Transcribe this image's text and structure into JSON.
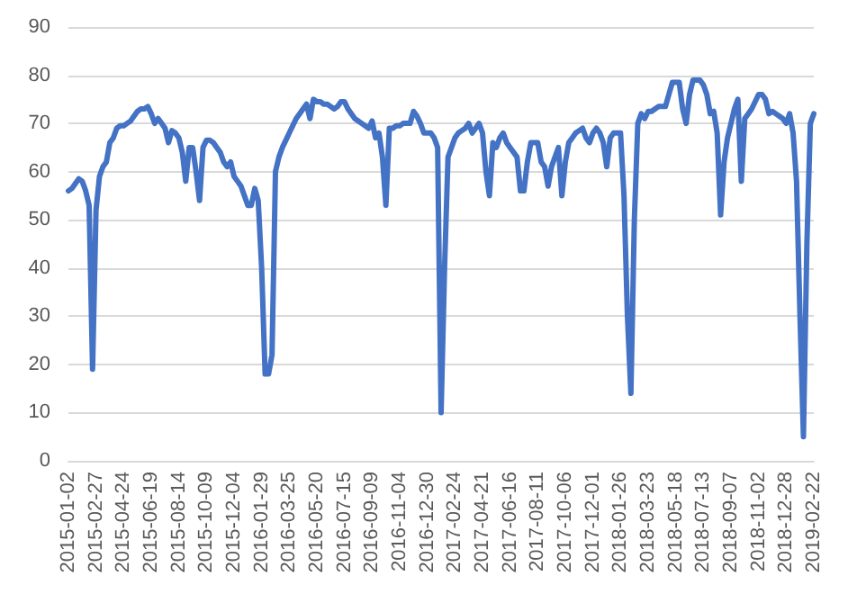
{
  "chart_data": {
    "type": "line",
    "categories": [
      "2015-01-02",
      null,
      null,
      null,
      null,
      null,
      null,
      null,
      "2015-02-27",
      null,
      null,
      null,
      null,
      null,
      null,
      null,
      "2015-04-24",
      null,
      null,
      null,
      null,
      null,
      null,
      null,
      "2015-06-19",
      null,
      null,
      null,
      null,
      null,
      null,
      null,
      "2015-08-14",
      null,
      null,
      null,
      null,
      null,
      null,
      null,
      "2015-10-09",
      null,
      null,
      null,
      null,
      null,
      null,
      null,
      "2015-12-04",
      null,
      null,
      null,
      null,
      null,
      null,
      null,
      "2016-01-29",
      null,
      null,
      null,
      null,
      null,
      null,
      null,
      "2016-03-25",
      null,
      null,
      null,
      null,
      null,
      null,
      null,
      "2016-05-20",
      null,
      null,
      null,
      null,
      null,
      null,
      null,
      "2016-07-15",
      null,
      null,
      null,
      null,
      null,
      null,
      null,
      "2016-09-09",
      null,
      null,
      null,
      null,
      null,
      null,
      null,
      "2016-11-04",
      null,
      null,
      null,
      null,
      null,
      null,
      null,
      "2016-12-30",
      null,
      null,
      null,
      null,
      null,
      null,
      null,
      "2017-02-24",
      null,
      null,
      null,
      null,
      null,
      null,
      null,
      "2017-04-21",
      null,
      null,
      null,
      null,
      null,
      null,
      null,
      "2017-06-16",
      null,
      null,
      null,
      null,
      null,
      null,
      null,
      "2017-08-11",
      null,
      null,
      null,
      null,
      null,
      null,
      null,
      "2017-10-06",
      null,
      null,
      null,
      null,
      null,
      null,
      null,
      "2017-12-01",
      null,
      null,
      null,
      null,
      null,
      null,
      null,
      "2018-01-26",
      null,
      null,
      null,
      null,
      null,
      null,
      null,
      "2018-03-23",
      null,
      null,
      null,
      null,
      null,
      null,
      null,
      "2018-05-18",
      null,
      null,
      null,
      null,
      null,
      null,
      null,
      "2018-07-13",
      null,
      null,
      null,
      null,
      null,
      null,
      null,
      "2018-09-07",
      null,
      null,
      null,
      null,
      null,
      null,
      null,
      "2018-11-02",
      null,
      null,
      null,
      null,
      null,
      null,
      null,
      "2018-12-28",
      null,
      null,
      null,
      null,
      null,
      null,
      null,
      "2019-02-22"
    ],
    "series": [
      {
        "color": "#4472c4",
        "values": [
          56,
          56.5,
          57.5,
          58.5,
          58,
          56,
          53,
          19,
          52,
          59,
          61,
          62,
          66,
          67,
          69,
          69.5,
          69.5,
          70,
          70.5,
          71.5,
          72.5,
          73,
          73,
          73.5,
          72,
          70,
          71,
          70,
          69,
          66,
          68.5,
          68,
          67,
          64,
          58,
          65,
          65,
          60,
          54,
          65,
          66.5,
          66.5,
          66,
          65,
          64,
          62,
          61,
          62,
          59,
          58,
          57,
          55,
          53,
          53,
          56.5,
          54,
          40,
          18,
          18,
          22,
          60,
          63,
          65,
          66.5,
          68,
          69.5,
          71,
          72,
          73,
          74,
          71,
          75,
          74.5,
          74.5,
          74,
          74,
          73.5,
          73,
          73.5,
          74.5,
          74.5,
          73,
          72,
          71,
          70.5,
          70,
          69.5,
          69,
          70.5,
          67,
          68,
          63,
          53,
          69,
          69,
          69.5,
          69.5,
          70,
          70,
          70,
          72.5,
          71.5,
          70,
          68,
          68,
          68,
          67,
          65,
          10,
          40,
          63,
          65,
          67,
          68,
          68.5,
          69,
          70,
          68,
          69,
          70,
          68,
          60,
          55,
          66,
          65,
          67,
          68,
          66,
          65,
          64,
          63,
          56,
          56,
          62,
          66,
          66,
          66,
          62,
          61,
          57,
          61,
          63,
          65,
          55,
          62,
          66,
          67,
          68,
          68.5,
          69,
          67,
          66,
          68,
          69,
          68,
          66,
          61,
          67,
          68,
          68,
          68,
          55,
          30,
          14,
          50,
          70,
          72,
          71,
          72.5,
          72.5,
          73,
          73.5,
          73.5,
          73.5,
          76,
          78.5,
          78.5,
          78.5,
          73,
          70,
          76,
          79,
          79,
          79,
          78,
          76,
          72,
          72.5,
          68,
          51,
          62,
          67,
          70,
          73,
          75,
          58,
          71,
          72,
          73,
          74.5,
          76,
          76,
          75,
          72,
          72.5,
          72,
          71.5,
          71,
          70,
          72,
          68,
          58,
          30,
          5,
          45,
          70,
          72
        ]
      }
    ],
    "ylim": [
      0,
      90
    ],
    "yticks": [
      0,
      10,
      20,
      30,
      40,
      50,
      60,
      70,
      80,
      90
    ],
    "grid": "y",
    "marker": "none",
    "line_style": "solid"
  }
}
